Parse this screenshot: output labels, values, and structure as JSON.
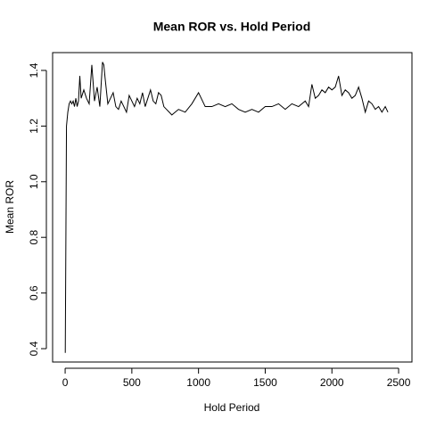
{
  "chart_data": {
    "type": "line",
    "title": "Mean ROR vs. Hold Period",
    "x_label": "Hold Period",
    "y_label": "Mean ROR",
    "x": [
      1,
      10,
      20,
      30,
      40,
      50,
      60,
      70,
      80,
      90,
      100,
      110,
      120,
      140,
      160,
      180,
      200,
      220,
      240,
      260,
      280,
      290,
      300,
      320,
      340,
      360,
      380,
      400,
      420,
      440,
      460,
      480,
      500,
      520,
      540,
      560,
      580,
      600,
      620,
      640,
      660,
      680,
      700,
      720,
      740,
      760,
      780,
      800,
      850,
      900,
      950,
      1000,
      1050,
      1100,
      1150,
      1200,
      1250,
      1300,
      1350,
      1400,
      1450,
      1500,
      1550,
      1600,
      1650,
      1700,
      1750,
      1800,
      1825,
      1850,
      1875,
      1900,
      1925,
      1950,
      1975,
      2000,
      2025,
      2050,
      2075,
      2100,
      2125,
      2150,
      2175,
      2200,
      2225,
      2250,
      2275,
      2300,
      2325,
      2350,
      2375,
      2400,
      2420
    ],
    "series": [
      {
        "color": "#000000",
        "values": [
          0.385,
          1.2,
          1.25,
          1.28,
          1.29,
          1.28,
          1.29,
          1.27,
          1.3,
          1.27,
          1.29,
          1.38,
          1.3,
          1.33,
          1.3,
          1.28,
          1.42,
          1.29,
          1.34,
          1.27,
          1.43,
          1.42,
          1.37,
          1.28,
          1.3,
          1.32,
          1.27,
          1.26,
          1.29,
          1.27,
          1.25,
          1.31,
          1.29,
          1.27,
          1.3,
          1.28,
          1.32,
          1.27,
          1.3,
          1.33,
          1.29,
          1.28,
          1.32,
          1.31,
          1.27,
          1.26,
          1.25,
          1.24,
          1.26,
          1.25,
          1.28,
          1.32,
          1.27,
          1.27,
          1.28,
          1.27,
          1.28,
          1.26,
          1.25,
          1.26,
          1.25,
          1.27,
          1.27,
          1.28,
          1.26,
          1.28,
          1.27,
          1.29,
          1.27,
          1.35,
          1.3,
          1.31,
          1.33,
          1.32,
          1.34,
          1.33,
          1.34,
          1.38,
          1.31,
          1.33,
          1.32,
          1.3,
          1.31,
          1.34,
          1.3,
          1.25,
          1.29,
          1.28,
          1.26,
          1.27,
          1.25,
          1.27,
          1.25
        ]
      }
    ],
    "xlim": [
      -94,
      2600
    ],
    "ylim": [
      0.352,
      1.464
    ],
    "xticks": [
      0,
      500,
      1000,
      1500,
      2000,
      2500
    ],
    "yticks": [
      {
        "value": 0.4,
        "label": "0.4"
      },
      {
        "value": 0.6,
        "label": "0.6"
      },
      {
        "value": 0.8,
        "label": "0.8"
      },
      {
        "value": 1.0,
        "label": "1.0"
      },
      {
        "value": 1.2,
        "label": "1.2"
      },
      {
        "value": 1.4,
        "label": "1.4"
      }
    ]
  }
}
